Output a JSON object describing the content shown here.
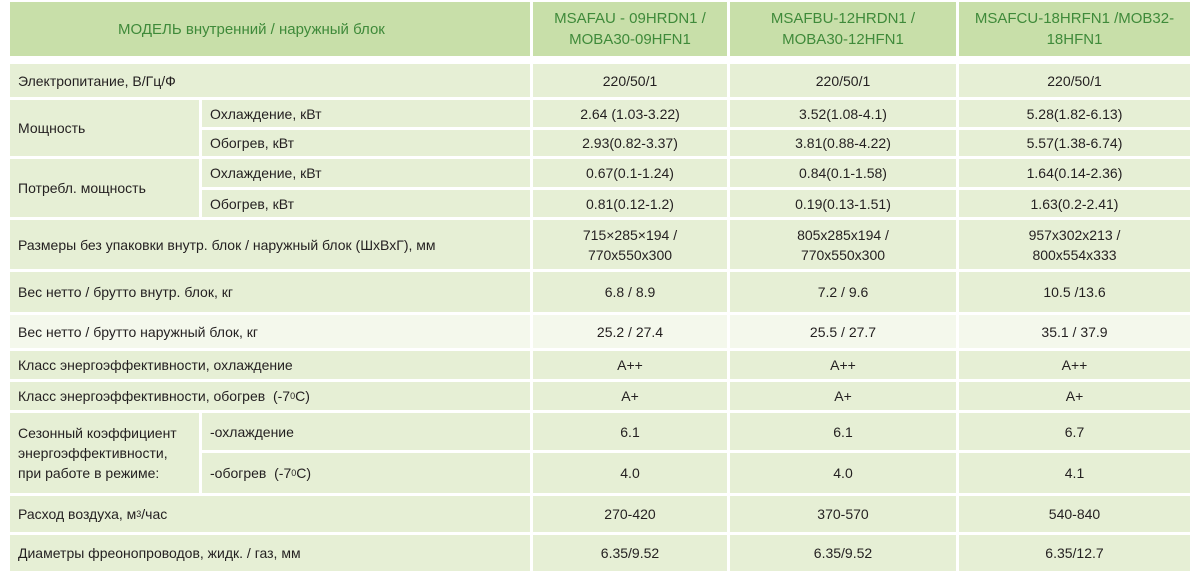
{
  "header": {
    "title": "МОДЕЛЬ  внутренний  /  наружный блок",
    "models": [
      {
        "line1": "MSAFAU - 09HRDN1 /",
        "line2": "MOBA30-09HFN1"
      },
      {
        "line1": "MSAFBU-12HRDN1 /",
        "line2": "MOBA30-12HFN1"
      },
      {
        "line1": "MSAFCU-18HRFN1 /MOB32-",
        "line2": "18HFN1"
      }
    ]
  },
  "rows": {
    "power_supply": {
      "label": "Электропитание, В/Гц/Ф",
      "values": [
        "220/50/1",
        "220/50/1",
        "220/50/1"
      ]
    },
    "capacity": {
      "label": "Мощность",
      "cooling": {
        "label": "Охлаждение, кВт",
        "values": [
          "2.64 (1.03-3.22)",
          "3.52(1.08-4.1)",
          "5.28(1.82-6.13)"
        ]
      },
      "heating": {
        "label": "Обогрев, кВт",
        "values": [
          "2.93(0.82-3.37)",
          "3.81(0.88-4.22)",
          "5.57(1.38-6.74)"
        ]
      }
    },
    "consumption": {
      "label": "Потребл. мощность",
      "cooling": {
        "label": "Охлаждение, кВт",
        "values": [
          "0.67(0.1-1.24)",
          "0.84(0.1-1.58)",
          "1.64(0.14-2.36)"
        ]
      },
      "heating": {
        "label": "Обогрев, кВт",
        "values": [
          "0.81(0.12-1.2)",
          "0.19(0.13-1.51)",
          "1.63(0.2-2.41)"
        ]
      }
    },
    "dimensions": {
      "label": "Размеры без упаковки внутр. блок / наружный блок  (ШхВхГ), мм",
      "values": [
        {
          "line1": "715×285×194 /",
          "line2": "770x550x300"
        },
        {
          "line1": "805x285x194 /",
          "line2": "770x550x300"
        },
        {
          "line1": "957x302x213 /",
          "line2": "800x554x333"
        }
      ]
    },
    "weight_indoor": {
      "label": "Вес нетто / брутто внутр. блок, кг",
      "values": [
        "6.8 / 8.9",
        "7.2 / 9.6",
        "10.5 /13.6"
      ]
    },
    "weight_outdoor": {
      "label": "Вес нетто / брутто наружный блок, кг",
      "values": [
        "25.2 / 27.4",
        "25.5 / 27.7",
        "35.1 / 37.9"
      ]
    },
    "energy_cooling": {
      "label": "Класс энергоэффективности, охлаждение",
      "values": [
        "A++",
        "A++",
        "A++"
      ]
    },
    "energy_heating": {
      "label_prefix": "Класс энергоэффективности, обогрев  (-7",
      "label_sup": "0",
      "label_suffix": "С)",
      "values": [
        "A+",
        "A+",
        "A+"
      ]
    },
    "seasonal": {
      "label_lines": [
        "Сезонный коэффициент",
        "энергоэффективности,",
        "при работе в режиме:"
      ],
      "cooling": {
        "label": "-охлаждение",
        "values": [
          "6.1",
          "6.1",
          "6.7"
        ]
      },
      "heating": {
        "label_prefix": "-обогрев  (-7",
        "label_sup": "0",
        "label_suffix": "С)",
        "values": [
          "4.0",
          "4.0",
          "4.1"
        ]
      }
    },
    "airflow": {
      "label_prefix": "Расход воздуха, м",
      "label_sup": "3",
      "label_suffix": "/час",
      "values": [
        "270-420",
        "370-570",
        "540-840"
      ]
    },
    "pipes": {
      "label": "Диаметры фреонопроводов, жидк. / газ, мм",
      "values": [
        "6.35/9.52",
        "6.35/9.52",
        "6.35/12.7"
      ]
    }
  },
  "colors": {
    "header_bg": "#c8dfa9",
    "row_band": "#e6efd5",
    "row_light": "#f4f8ec",
    "header_text": "#3f8a3a",
    "divider": "#ffffff"
  }
}
